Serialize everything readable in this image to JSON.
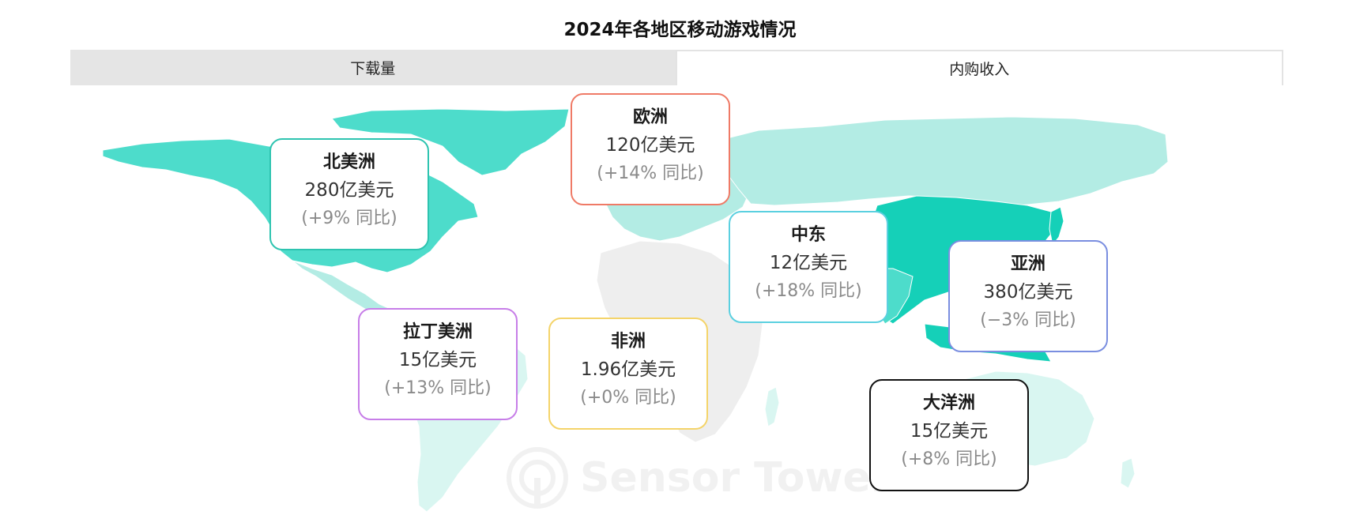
{
  "title": "2024年各地区移动游戏情况",
  "tabs": [
    {
      "label": "下载量",
      "active": true
    },
    {
      "label": "内购收入",
      "active": false
    }
  ],
  "colors": {
    "map_dark": "#15d0b8",
    "map_medium": "#4ddccb",
    "map_light": "#b3ece4",
    "map_lighter": "#d9f6f1",
    "map_gray": "#eeeeee"
  },
  "regions": [
    {
      "id": "north-america",
      "name": "北美洲",
      "value": "280亿美元",
      "growth": "(+9% 同比)",
      "border_color": "#2ec4b0"
    },
    {
      "id": "europe",
      "name": "欧洲",
      "value": "120亿美元",
      "growth": "(+14% 同比)",
      "border_color": "#ef7a66"
    },
    {
      "id": "middle-east",
      "name": "中东",
      "value": "12亿美元",
      "growth": "(+18% 同比)",
      "border_color": "#5bd0e0"
    },
    {
      "id": "asia",
      "name": "亚洲",
      "value": "380亿美元",
      "growth": "(−3% 同比)",
      "border_color": "#7a8ee0"
    },
    {
      "id": "latin-america",
      "name": "拉丁美洲",
      "value": "15亿美元",
      "growth": "(+13% 同比)",
      "border_color": "#c77ee8"
    },
    {
      "id": "africa",
      "name": "非洲",
      "value": "1.96亿美元",
      "growth": "(+0% 同比)",
      "border_color": "#f4d46a"
    },
    {
      "id": "oceania",
      "name": "大洋洲",
      "value": "15亿美元",
      "growth": "(+8% 同比)",
      "border_color": "#111111"
    }
  ],
  "watermark": {
    "text": "Sensor Tower"
  }
}
